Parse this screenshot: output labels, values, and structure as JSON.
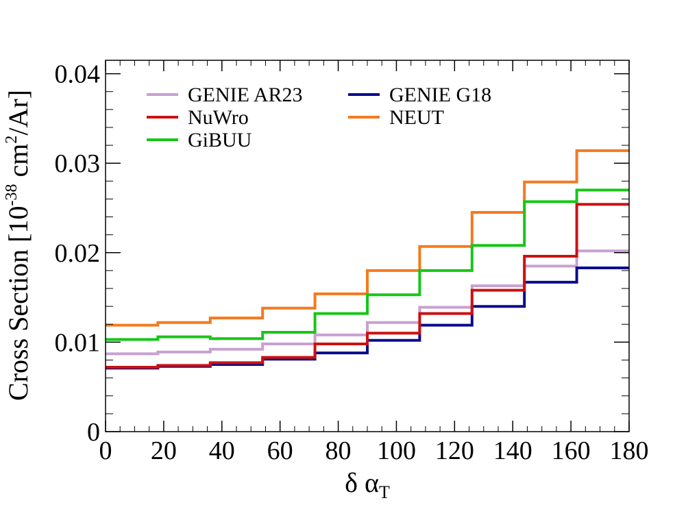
{
  "chart_data": {
    "type": "line",
    "step": true,
    "xlabel_main": "δ α",
    "xlabel_sub": "T",
    "ylabel_main": "Cross Section [10",
    "ylabel_exp1": "-38",
    "ylabel_mid": " cm",
    "ylabel_exp2": "2",
    "ylabel_end": "/Ar]",
    "xlim": [
      0,
      180
    ],
    "ylim": [
      0,
      0.0415
    ],
    "bin_edges": [
      0,
      18,
      36,
      54,
      72,
      90,
      108,
      126,
      144,
      162,
      180
    ],
    "x_ticks": [
      0,
      20,
      40,
      60,
      80,
      100,
      120,
      140,
      160,
      180
    ],
    "x_tick_labels": [
      "0",
      "20",
      "40",
      "60",
      "80",
      "100",
      "120",
      "140",
      "160",
      "180"
    ],
    "y_ticks": [
      0,
      0.01,
      0.02,
      0.03,
      0.04
    ],
    "y_tick_labels": [
      "0",
      "0.01",
      "0.02",
      "0.03",
      "0.04"
    ],
    "grid": false,
    "legend_position": "top-left",
    "series": [
      {
        "name": "GENIE AR23",
        "color": "#c8a0d0",
        "values": [
          0.0087,
          0.0089,
          0.0092,
          0.0098,
          0.0108,
          0.0122,
          0.0139,
          0.0163,
          0.0185,
          0.0202
        ]
      },
      {
        "name": "GENIE G18",
        "color": "#0b0b8e",
        "values": [
          0.0071,
          0.0073,
          0.0075,
          0.0081,
          0.0088,
          0.0102,
          0.0119,
          0.014,
          0.0167,
          0.0183
        ]
      },
      {
        "name": "NuWro",
        "color": "#cc1111",
        "values": [
          0.0072,
          0.0074,
          0.0077,
          0.0083,
          0.0098,
          0.011,
          0.0132,
          0.0158,
          0.0196,
          0.0254
        ]
      },
      {
        "name": "NEUT",
        "color": "#f47a1e",
        "values": [
          0.0119,
          0.0122,
          0.0127,
          0.0138,
          0.0154,
          0.018,
          0.0207,
          0.0245,
          0.0279,
          0.0314
        ]
      },
      {
        "name": "GiBUU",
        "color": "#17c617",
        "values": [
          0.0103,
          0.0106,
          0.0104,
          0.0111,
          0.0132,
          0.0153,
          0.018,
          0.0208,
          0.0257,
          0.027
        ]
      }
    ]
  }
}
